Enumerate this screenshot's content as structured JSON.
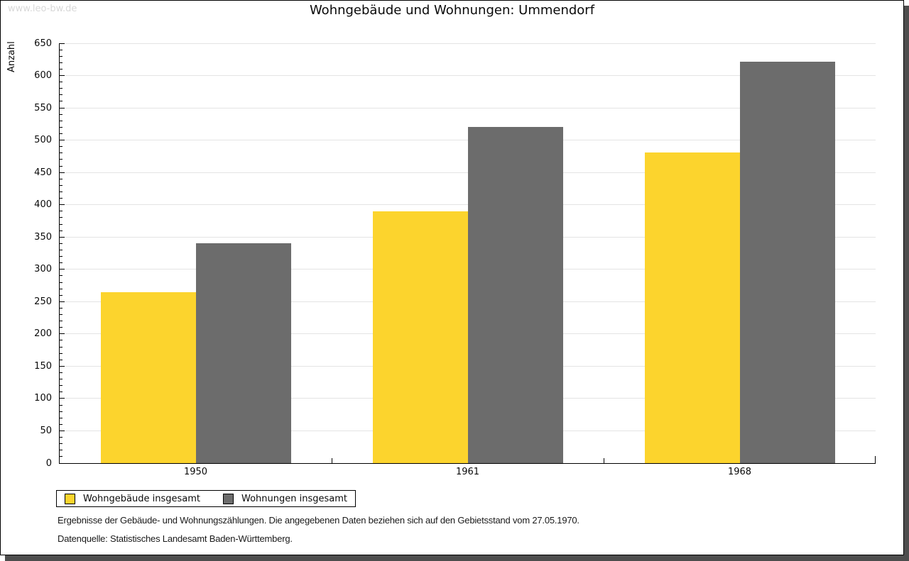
{
  "watermark": "www.leo-bw.de",
  "header": {
    "title": "Wohngebäude und Wohnungen: Ummendorf"
  },
  "chart_data": {
    "type": "bar",
    "title": "Wohngebäude und Wohnungen: Ummendorf",
    "categories": [
      "1950",
      "1961",
      "1968"
    ],
    "series": [
      {
        "name": "Wohngebäude insgesamt",
        "color": "#fcd42d",
        "values": [
          265,
          390,
          481
        ]
      },
      {
        "name": "Wohnungen insgesamt",
        "color": "#6c6c6c",
        "values": [
          340,
          520,
          622
        ]
      }
    ],
    "xlabel": "",
    "ylabel": "Anzahl",
    "ylim": [
      0,
      650
    ],
    "ytick_major": 50,
    "ytick_minor": 10,
    "grid": true,
    "gridline_color": "#e4e4e4",
    "legend_position": "bottom-left"
  },
  "footnotes": {
    "line1": "Ergebnisse der Gebäude- und Wohnungszählungen. Die angegebenen Daten beziehen sich auf den Gebietsstand vom 27.05.1970.",
    "line2": "Datenquelle: Statistisches Landesamt Baden-Württemberg."
  }
}
